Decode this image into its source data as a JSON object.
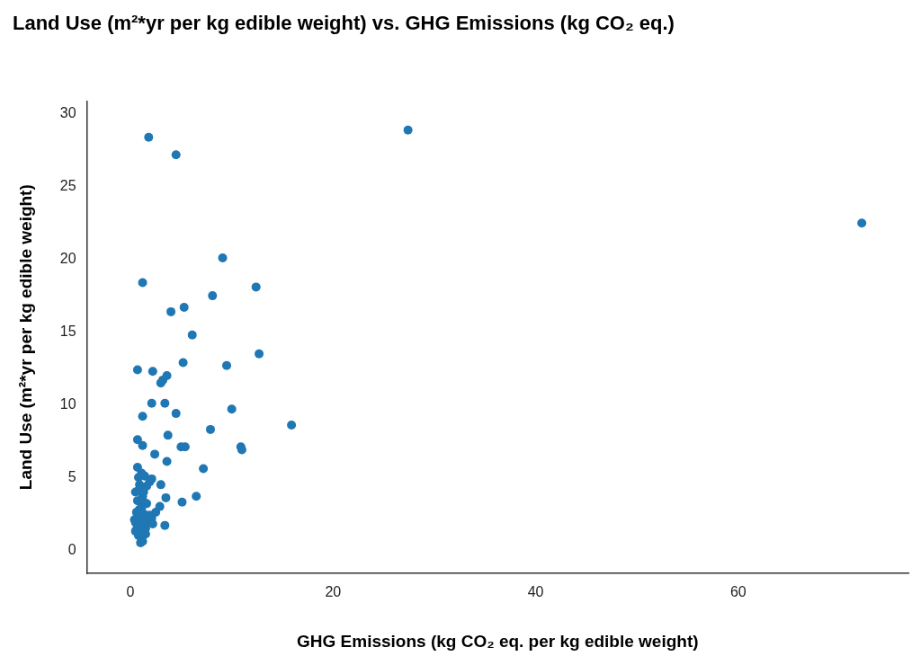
{
  "chart_data": {
    "type": "scatter",
    "title": "Land Use (m²*yr per kg edible weight) vs. GHG Emissions (kg CO₂ eq.)",
    "x_label": "GHG Emissions (kg CO₂ eq. per kg edible weight)",
    "y_label": "Land Use (m²*yr per kg edible weight)",
    "x": [
      1.8,
      4.5,
      27.4,
      72.2,
      9.1,
      1.2,
      12.4,
      8.1,
      5.3,
      4.0,
      6.1,
      12.7,
      5.2,
      9.5,
      0.7,
      2.2,
      3.6,
      3.2,
      3.0,
      2.1,
      3.4,
      10.0,
      4.5,
      1.2,
      15.9,
      7.9,
      3.7,
      0.7,
      1.2,
      5.0,
      5.4,
      10.9,
      11.0,
      2.4,
      3.6,
      7.2,
      0.7,
      1.1,
      1.4,
      0.8,
      2.1,
      1.9,
      0.9,
      3.0,
      1.6,
      0.8,
      0.5,
      1.3,
      1.2,
      6.5,
      3.5,
      0.7,
      5.1,
      1.3,
      1.6,
      2.9,
      1.1,
      0.9,
      0.6,
      2.5,
      1.3,
      1.9,
      0.8,
      2.1,
      0.4,
      1.1,
      1.6,
      0.5,
      2.2,
      3.4,
      1.2,
      0.7,
      1.5,
      1.0,
      0.5,
      1.2,
      1.5,
      0.8,
      1.1,
      1.2,
      1.0,
      0.6,
      1.3
    ],
    "values": [
      28.4,
      27.2,
      28.9,
      22.5,
      20.1,
      18.4,
      18.1,
      17.5,
      16.7,
      16.4,
      14.8,
      13.5,
      12.9,
      12.7,
      12.4,
      12.3,
      12.0,
      11.7,
      11.5,
      10.1,
      10.1,
      9.7,
      9.4,
      9.2,
      8.6,
      8.3,
      7.9,
      7.6,
      7.2,
      7.1,
      7.1,
      7.1,
      6.9,
      6.6,
      6.1,
      5.6,
      5.7,
      5.3,
      5.1,
      5.0,
      4.9,
      4.7,
      4.5,
      4.5,
      4.4,
      4.1,
      4.0,
      4.0,
      3.7,
      3.7,
      3.6,
      3.4,
      3.3,
      3.3,
      3.2,
      3.0,
      2.9,
      2.8,
      2.6,
      2.6,
      2.5,
      2.4,
      2.3,
      2.2,
      2.1,
      2.0,
      2.0,
      1.9,
      1.8,
      1.7,
      1.7,
      1.6,
      1.5,
      1.4,
      1.3,
      1.1,
      1.1,
      1.0,
      0.8,
      0.6,
      0.5,
      1.4,
      2.0
    ],
    "color": "#1f77b4",
    "xlim": [
      -4.3,
      76.8
    ],
    "ylim": [
      -1.6,
      30.9
    ],
    "xticks": [
      0,
      20,
      40,
      60
    ],
    "yticks": [
      0,
      5,
      10,
      15,
      20,
      25,
      30
    ],
    "grid": false
  }
}
